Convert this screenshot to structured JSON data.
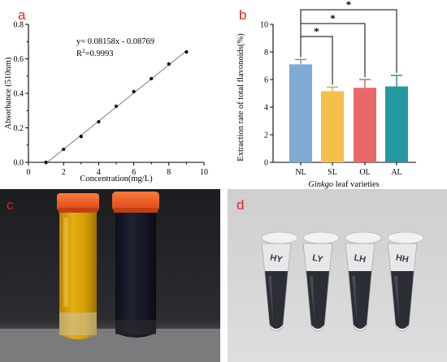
{
  "panels": {
    "a": "a",
    "b": "b",
    "c": "c",
    "d": "d"
  },
  "chart_data": [
    {
      "type": "scatter",
      "title": "",
      "xlabel": "Concentration(mg/L)",
      "ylabel": "Absorbance (510nm)",
      "xlim": [
        0,
        10
      ],
      "ylim": [
        0,
        0.8
      ],
      "xticks": [
        "0",
        "2",
        "4",
        "6",
        "8",
        "10"
      ],
      "yticks": [
        "0.0",
        "0.2",
        "0.4",
        "0.6",
        "0.8"
      ],
      "equation": "y= 0.08158x - 0.08769",
      "r2_prefix": "R",
      "r2_sup": "2",
      "r2_value": "=0.9993",
      "fit": {
        "slope": 0.08158,
        "intercept": -0.08769,
        "x_range": [
          1.07,
          9
        ]
      },
      "points": [
        {
          "x": 1,
          "y": 0.0
        },
        {
          "x": 2,
          "y": 0.075
        },
        {
          "x": 3,
          "y": 0.15
        },
        {
          "x": 4,
          "y": 0.235
        },
        {
          "x": 5,
          "y": 0.325
        },
        {
          "x": 6,
          "y": 0.41
        },
        {
          "x": 7,
          "y": 0.485
        },
        {
          "x": 8,
          "y": 0.57
        },
        {
          "x": 9,
          "y": 0.64
        }
      ]
    },
    {
      "type": "bar",
      "title": "",
      "xlabel_italic": "Ginkgo",
      "xlabel_rest": " leaf varieties",
      "ylabel": "Extraction rate of total flavonoids(%)",
      "ylim": [
        0,
        10
      ],
      "yticks": [
        "0",
        "2",
        "4",
        "6",
        "8",
        "10"
      ],
      "categories": [
        "NL",
        "SL",
        "OL",
        "AL"
      ],
      "values": [
        7.1,
        5.15,
        5.4,
        5.5
      ],
      "errors": [
        0.35,
        0.3,
        0.6,
        0.8
      ],
      "colors": [
        "#7faad1",
        "#f5c04a",
        "#e8686a",
        "#25989f"
      ],
      "error_colors": [
        "#5d8bb8",
        "#d9a233",
        "#cc4e50",
        "#1a7a80"
      ],
      "significance": [
        {
          "from": 0,
          "to": 1,
          "label": "*"
        },
        {
          "from": 0,
          "to": 2,
          "label": "*"
        },
        {
          "from": 0,
          "to": 3,
          "label": "*"
        }
      ]
    }
  ],
  "photos": {
    "c": {
      "left_tube_color": "#d8a106",
      "right_tube_color": "#121624",
      "cap_color": "#ee5a22"
    },
    "d": {
      "tube_labels": [
        "HY",
        "LY",
        "LH",
        "HH"
      ]
    }
  }
}
